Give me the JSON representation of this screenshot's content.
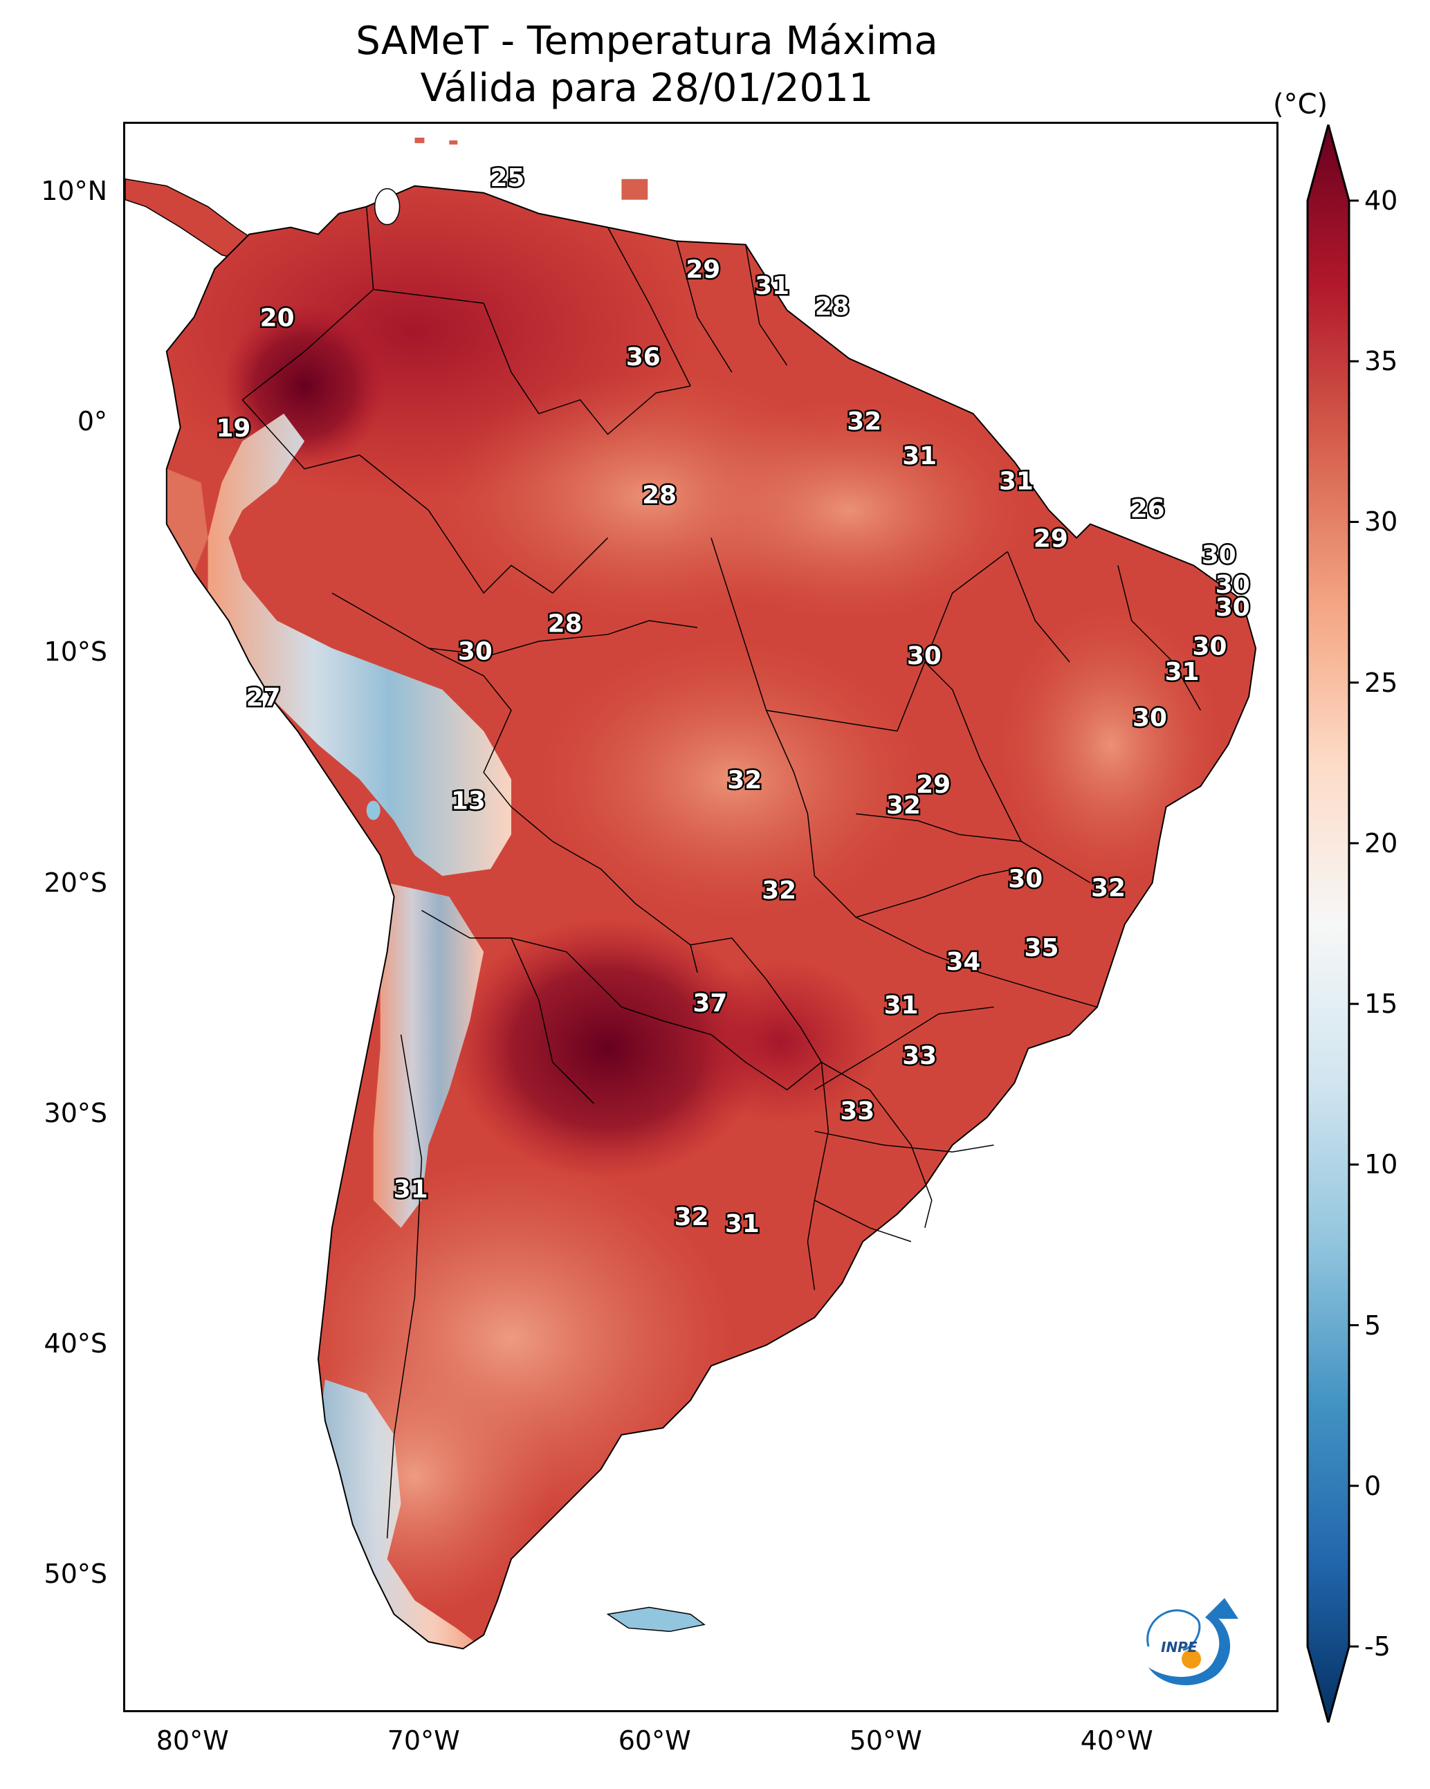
{
  "title": {
    "line1": "SAMeT - Temperatura Máxima",
    "line2": "Válida para 28/01/2011"
  },
  "axes": {
    "lat_ticks": [
      {
        "label": "10°N",
        "value": 10
      },
      {
        "label": "0°",
        "value": 0
      },
      {
        "label": "10°S",
        "value": -10
      },
      {
        "label": "20°S",
        "value": -20
      },
      {
        "label": "30°S",
        "value": -30
      },
      {
        "label": "40°S",
        "value": -40
      },
      {
        "label": "50°S",
        "value": -50
      }
    ],
    "lon_ticks": [
      {
        "label": "80°W",
        "value": -80
      },
      {
        "label": "70°W",
        "value": -70
      },
      {
        "label": "60°W",
        "value": -60
      },
      {
        "label": "50°W",
        "value": -50
      },
      {
        "label": "40°W",
        "value": -40
      }
    ],
    "lon_range": [
      -83,
      -33
    ],
    "lat_range": [
      -56,
      13
    ]
  },
  "colorbar": {
    "unit": "(°C)",
    "ticks": [
      {
        "label": "40",
        "value": 40
      },
      {
        "label": "35",
        "value": 35
      },
      {
        "label": "30",
        "value": 30
      },
      {
        "label": "25",
        "value": 25
      },
      {
        "label": "20",
        "value": 20
      },
      {
        "label": "15",
        "value": 15
      },
      {
        "label": "10",
        "value": 10
      },
      {
        "label": "5",
        "value": 5
      },
      {
        "label": "0",
        "value": 0
      },
      {
        "label": "-5",
        "value": -5
      }
    ],
    "range": [
      -5,
      40
    ],
    "stops": [
      "#053061",
      "#2166ac",
      "#4393c3",
      "#92c5de",
      "#d1e5f0",
      "#f7f7f7",
      "#fddbc7",
      "#f4a582",
      "#d6604d",
      "#b2182b",
      "#67001f"
    ]
  },
  "station_labels": [
    {
      "text": "25",
      "lon": -66.4,
      "lat": 10.6
    },
    {
      "text": "20",
      "lon": -76.4,
      "lat": 4.5
    },
    {
      "text": "29",
      "lon": -57.9,
      "lat": 6.6
    },
    {
      "text": "31",
      "lon": -54.9,
      "lat": 5.9
    },
    {
      "text": "28",
      "lon": -52.3,
      "lat": 5.0
    },
    {
      "text": "36",
      "lon": -60.5,
      "lat": 2.8
    },
    {
      "text": "19",
      "lon": -78.3,
      "lat": -0.3
    },
    {
      "text": "32",
      "lon": -50.9,
      "lat": 0.0
    },
    {
      "text": "31",
      "lon": -48.5,
      "lat": -1.5
    },
    {
      "text": "28",
      "lon": -59.8,
      "lat": -3.2
    },
    {
      "text": "31",
      "lon": -44.3,
      "lat": -2.6
    },
    {
      "text": "26",
      "lon": -38.6,
      "lat": -3.8
    },
    {
      "text": "29",
      "lon": -42.8,
      "lat": -5.1
    },
    {
      "text": "30",
      "lon": -35.5,
      "lat": -5.8
    },
    {
      "text": "30",
      "lon": -34.9,
      "lat": -7.1
    },
    {
      "text": "30",
      "lon": -34.9,
      "lat": -8.1
    },
    {
      "text": "28",
      "lon": -63.9,
      "lat": -8.8
    },
    {
      "text": "30",
      "lon": -67.8,
      "lat": -10.0
    },
    {
      "text": "30",
      "lon": -48.3,
      "lat": -10.2
    },
    {
      "text": "30",
      "lon": -35.9,
      "lat": -9.8
    },
    {
      "text": "31",
      "lon": -37.1,
      "lat": -10.9
    },
    {
      "text": "27",
      "lon": -77.0,
      "lat": -12.0
    },
    {
      "text": "30",
      "lon": -38.5,
      "lat": -12.9
    },
    {
      "text": "13",
      "lon": -68.1,
      "lat": -16.5
    },
    {
      "text": "32",
      "lon": -56.1,
      "lat": -15.6
    },
    {
      "text": "29",
      "lon": -47.9,
      "lat": -15.8
    },
    {
      "text": "32",
      "lon": -49.2,
      "lat": -16.7
    },
    {
      "text": "32",
      "lon": -54.6,
      "lat": -20.4
    },
    {
      "text": "30",
      "lon": -43.9,
      "lat": -19.9
    },
    {
      "text": "32",
      "lon": -40.3,
      "lat": -20.3
    },
    {
      "text": "35",
      "lon": -43.2,
      "lat": -22.9
    },
    {
      "text": "34",
      "lon": -46.6,
      "lat": -23.5
    },
    {
      "text": "37",
      "lon": -57.6,
      "lat": -25.3
    },
    {
      "text": "31",
      "lon": -49.3,
      "lat": -25.4
    },
    {
      "text": "33",
      "lon": -48.5,
      "lat": -27.6
    },
    {
      "text": "33",
      "lon": -51.2,
      "lat": -30.0
    },
    {
      "text": "31",
      "lon": -70.6,
      "lat": -33.4
    },
    {
      "text": "32",
      "lon": -58.4,
      "lat": -34.6
    },
    {
      "text": "31",
      "lon": -56.2,
      "lat": -34.9
    }
  ],
  "logo": {
    "text": "INPE"
  }
}
